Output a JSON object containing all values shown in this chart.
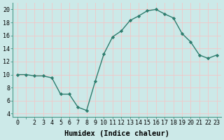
{
  "x": [
    0,
    1,
    2,
    3,
    4,
    5,
    6,
    7,
    8,
    9,
    10,
    11,
    12,
    13,
    14,
    15,
    16,
    17,
    18,
    19,
    20,
    21,
    22,
    23
  ],
  "y": [
    10,
    10,
    9.8,
    9.8,
    9.5,
    7.0,
    7.0,
    5.0,
    4.5,
    9.0,
    13.2,
    15.8,
    16.7,
    18.3,
    19.0,
    19.8,
    20.0,
    19.3,
    18.7,
    16.3,
    15.0,
    13.0,
    12.5,
    13.0
  ],
  "line_color": "#2e7d6e",
  "marker": "D",
  "marker_size": 2.2,
  "bg_color": "#cce9e8",
  "grid_color": "#f0c8c8",
  "xlabel": "Humidex (Indice chaleur)",
  "xlim": [
    -0.5,
    23.5
  ],
  "ylim": [
    3.5,
    21
  ],
  "yticks": [
    4,
    6,
    8,
    10,
    12,
    14,
    16,
    18,
    20
  ],
  "xticks": [
    0,
    1,
    2,
    3,
    4,
    5,
    6,
    7,
    8,
    9,
    10,
    11,
    12,
    13,
    14,
    15,
    16,
    17,
    18,
    19,
    20,
    21,
    22,
    23
  ],
  "xtick_labels": [
    "0",
    "",
    "2",
    "3",
    "4",
    "5",
    "6",
    "7",
    "8",
    "9",
    "10",
    "11",
    "12",
    "13",
    "14",
    "15",
    "16",
    "17",
    "18",
    "19",
    "20",
    "21",
    "22",
    "23"
  ],
  "xlabel_fontsize": 7.5,
  "tick_fontsize": 6.0,
  "lw": 1.0
}
